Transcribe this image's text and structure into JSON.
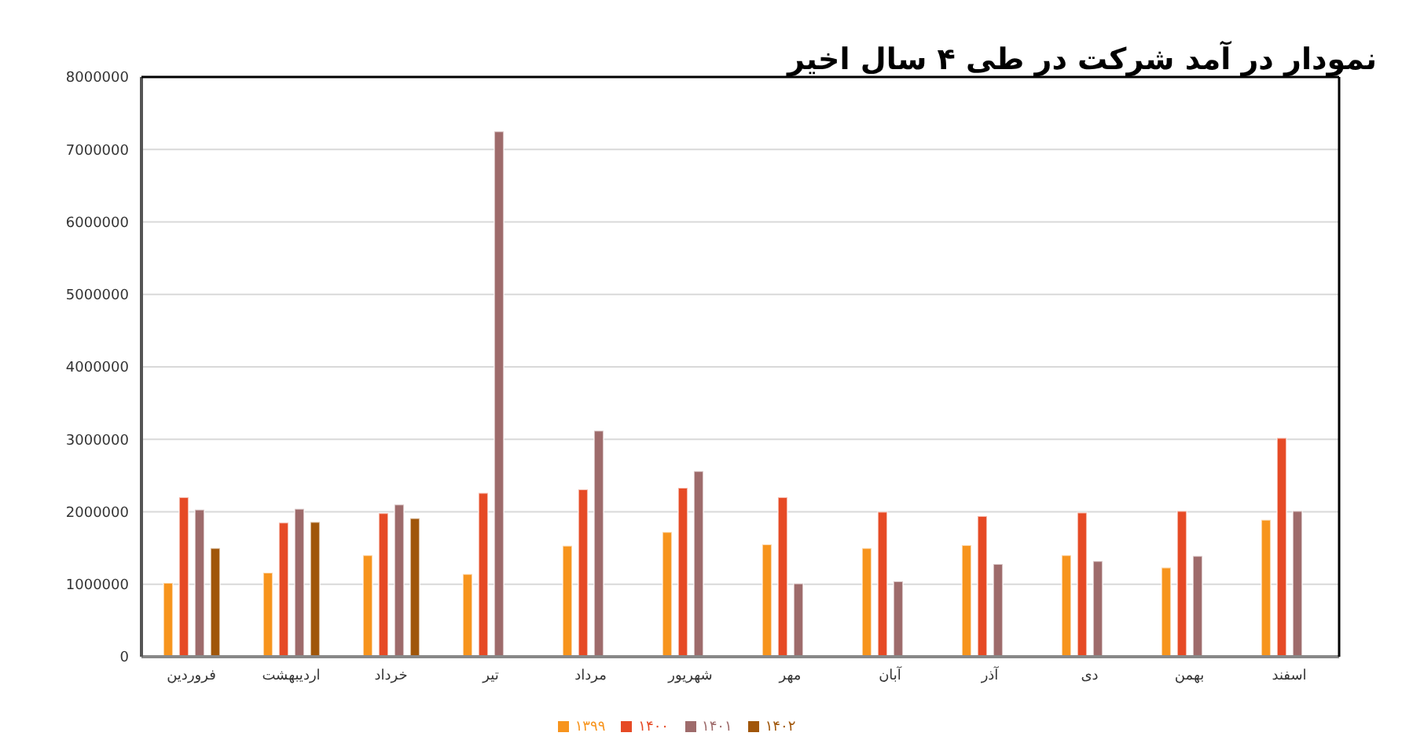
{
  "chart_data": {
    "type": "bar",
    "title": "نمودار در آمد شرکت در طی ۴ سال اخیر",
    "categories": [
      "فروردین",
      "اردیبهشت",
      "خرداد",
      "تیر",
      "مرداد",
      "شهریور",
      "مهر",
      "آبان",
      "آذر",
      "دی",
      "بهمن",
      "اسفند"
    ],
    "series": [
      {
        "name": "۱۳۹۹",
        "color": "#f7941d",
        "values": [
          1020000,
          1160000,
          1400000,
          1140000,
          1530000,
          1720000,
          1550000,
          1500000,
          1540000,
          1400000,
          1230000,
          1890000
        ]
      },
      {
        "name": "۱۴۰۰",
        "color": "#e64a25",
        "values": [
          2200000,
          1850000,
          1980000,
          2260000,
          2310000,
          2330000,
          2200000,
          2000000,
          1940000,
          1990000,
          2010000,
          3020000
        ]
      },
      {
        "name": "۱۴۰۱",
        "color": "#9e6b6b",
        "values": [
          2030000,
          2040000,
          2100000,
          7250000,
          3120000,
          2560000,
          1010000,
          1040000,
          1280000,
          1320000,
          1390000,
          2010000
        ]
      },
      {
        "name": "۱۴۰۲",
        "color": "#a0560a",
        "values": [
          1500000,
          1860000,
          1910000,
          null,
          null,
          null,
          null,
          null,
          null,
          null,
          null,
          null
        ]
      }
    ],
    "ylim": [
      0,
      8000000
    ],
    "yticks": [
      0,
      1000000,
      2000000,
      3000000,
      4000000,
      5000000,
      6000000,
      7000000,
      8000000
    ],
    "grid": "y",
    "legend": "bottom"
  }
}
